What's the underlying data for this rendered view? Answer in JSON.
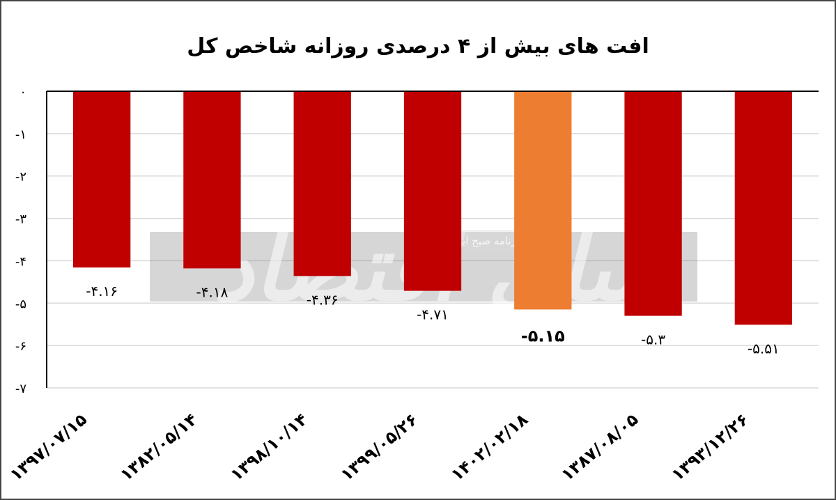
{
  "chart_data": {
    "type": "bar",
    "title": "افت های بیش از ۴ درصدی روزانه شاخص کل",
    "categories": [
      "۱۳۹۷/۰۷/۱۵",
      "۱۳۸۲/۰۵/۱۴",
      "۱۳۹۸/۱۰/۱۴",
      "۱۳۹۹/۰۵/۲۶",
      "۱۴۰۲/۰۲/۱۸",
      "۱۳۸۷/۰۸/۰۵",
      "۱۳۹۳/۱۲/۲۶"
    ],
    "values": [
      -4.16,
      -4.18,
      -4.36,
      -4.71,
      -5.15,
      -5.3,
      -5.51
    ],
    "value_labels": [
      "-۴.۱۶",
      "-۴.۱۸",
      "-۴.۳۶",
      "-۴.۷۱",
      "-۵.۱۵",
      "-۵.۳",
      "-۵.۵۱"
    ],
    "highlight_index": 4,
    "ylim": [
      -7,
      0
    ],
    "yticks": [
      0,
      -1,
      -2,
      -3,
      -4,
      -5,
      -6,
      -7
    ],
    "ytick_labels": [
      "۰",
      "-۱",
      "-۲",
      "-۳",
      "-۴",
      "-۵",
      "-۶",
      "-۷"
    ],
    "grid": true,
    "colors": {
      "bar": "#c00000",
      "highlight": "#ed7d31",
      "grid": "#d9d9d9",
      "axis": "#000000"
    }
  },
  "watermark": {
    "logo_text": "دنیای اقتصاد",
    "sub_text": "روزنامه صبح ایران"
  }
}
